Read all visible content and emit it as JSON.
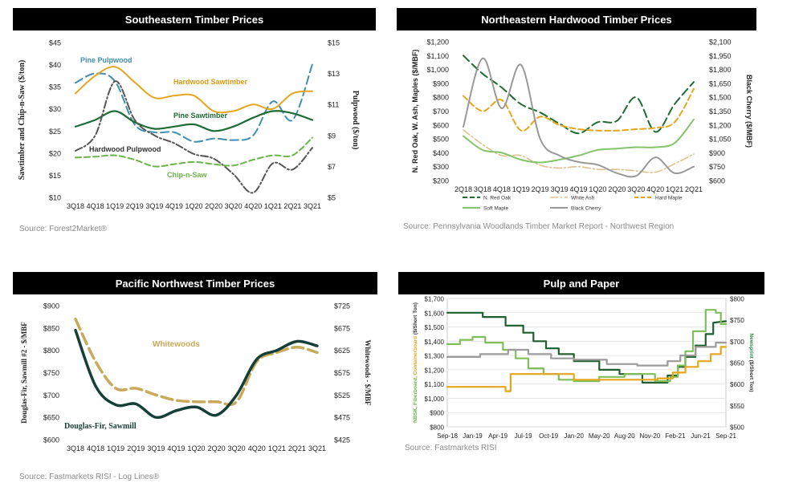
{
  "panels": [
    {
      "title": "Southeastern Timber Prices",
      "source": "Source: Forest2Market®",
      "chart_data": {
        "type": "line",
        "categories": [
          "3Q18",
          "4Q18",
          "1Q19",
          "2Q19",
          "3Q19",
          "4Q19",
          "1Q20",
          "2Q20",
          "3Q20",
          "4Q20",
          "1Q21",
          "2Q21",
          "3Q21"
        ],
        "ylabel": "Sawtimber and Chip-n-Saw ($/ton)",
        "y2label": "Pulpwood ($/ton)",
        "ylim": [
          10,
          45
        ],
        "yticks": [
          "$10",
          "$15",
          "$20",
          "$25",
          "$30",
          "$35",
          "$40",
          "$45"
        ],
        "y2lim": [
          5,
          15
        ],
        "y2ticks": [
          "$5",
          "$7",
          "$9",
          "$11",
          "$13",
          "$15"
        ],
        "series": [
          {
            "name": "Pine Pulpwood",
            "axis": "right",
            "color": "#3f8fb0",
            "dash": "10,5",
            "width": 2,
            "values": [
              12.4,
              13.0,
              12.5,
              9.7,
              9.2,
              9.2,
              8.6,
              8.8,
              8.7,
              9.0,
              11.2,
              10.0,
              13.6
            ]
          },
          {
            "name": "Hardwood Sawtimber",
            "axis": "left",
            "color": "#e5a51e",
            "dash": "",
            "width": 2,
            "values": [
              33.5,
              37.5,
              39.5,
              36.0,
              32.5,
              33.0,
              33.0,
              29.5,
              29.5,
              31.0,
              30.0,
              33.5,
              34.0
            ]
          },
          {
            "name": "Pine Sawtimber",
            "axis": "left",
            "color": "#1e6b35",
            "dash": "",
            "width": 2.2,
            "values": [
              26.0,
              27.5,
              29.5,
              27.0,
              25.5,
              26.0,
              26.5,
              25.0,
              26.0,
              28.0,
              29.5,
              29.0,
              27.5
            ]
          },
          {
            "name": "Hardwood Pulpwood",
            "axis": "right",
            "color": "#555555",
            "dash": "9,3,2,3",
            "width": 2,
            "values": [
              8.0,
              9.0,
              12.5,
              10.0,
              9.0,
              8.5,
              7.8,
              7.5,
              6.5,
              5.3,
              7.2,
              6.8,
              8.2
            ]
          },
          {
            "name": "Chip-n-Saw",
            "axis": "left",
            "color": "#6bb34a",
            "dash": "7,4",
            "width": 2,
            "values": [
              19.0,
              19.2,
              19.5,
              18.5,
              17.0,
              17.5,
              18.0,
              17.5,
              17.2,
              18.5,
              19.5,
              19.5,
              23.5
            ]
          }
        ],
        "annotations": [
          {
            "text": "Pine Pulpwood",
            "color": "#3f8fb0"
          },
          {
            "text": "Hardwood Sawtimber",
            "color": "#d79a14"
          },
          {
            "text": "Pine Sawtimber",
            "color": "#1e6b35"
          },
          {
            "text": "Hardwood Pulpwood",
            "color": "#333333"
          },
          {
            "text": "Chip-n-Saw",
            "color": "#6bb34a"
          }
        ]
      }
    },
    {
      "title": "Northeastern Hardwood Timber Prices",
      "source": "Source: Pennsylvania Woodlands Timber Market Report - Northwest Region",
      "chart_data": {
        "type": "line",
        "categories": [
          "2Q18",
          "3Q18",
          "4Q18",
          "1Q19",
          "2Q19",
          "3Q19",
          "4Q19",
          "1Q20",
          "2Q20",
          "3Q20",
          "4Q20",
          "1Q21",
          "2Q21"
        ],
        "ylabel": "N. Red Oak, W. Ash, Maples ($/MBF)",
        "y2label": "Black Cherry ($/MBF)",
        "ylim": [
          200,
          1200
        ],
        "yticks": [
          "$200",
          "$300",
          "$400",
          "$500",
          "$600",
          "$700",
          "$800",
          "$900",
          "$1,000",
          "$1,100",
          "$1,200"
        ],
        "y2lim": [
          600,
          2100
        ],
        "y2ticks": [
          "$600",
          "$750",
          "$900",
          "$1,050",
          "$1,200",
          "$1,350",
          "$1,500",
          "$1,650",
          "$1,800",
          "$1,950",
          "$2,100"
        ],
        "series": [
          {
            "name": "N. Red Oak",
            "axis": "left",
            "color": "#1e6b35",
            "dash": "10,5",
            "width": 2,
            "values": [
              1100,
              970,
              870,
              750,
              690,
              610,
              540,
              620,
              630,
              800,
              550,
              750,
              910
            ]
          },
          {
            "name": "White Ash",
            "axis": "left",
            "color": "#e0c08e",
            "dash": "10,3,2,3",
            "width": 1.6,
            "values": [
              565,
              460,
              380,
              380,
              310,
              290,
              300,
              280,
              280,
              270,
              260,
              320,
              390
            ]
          },
          {
            "name": "Hard Maple",
            "axis": "left",
            "color": "#e5a51e",
            "dash": "7,4",
            "width": 2,
            "values": [
              810,
              700,
              780,
              560,
              660,
              600,
              570,
              560,
              560,
              570,
              580,
              620,
              860
            ]
          },
          {
            "name": "Soft Maple",
            "axis": "left",
            "color": "#84c46a",
            "dash": "",
            "width": 2,
            "values": [
              520,
              420,
              400,
              350,
              330,
              350,
              380,
              420,
              430,
              440,
              440,
              470,
              640
            ]
          },
          {
            "name": "Black Cherry",
            "axis": "right",
            "color": "#999999",
            "dash": "",
            "width": 2,
            "values": [
              1180,
              1920,
              1380,
              1850,
              1050,
              870,
              800,
              770,
              680,
              650,
              850,
              680,
              750
            ]
          }
        ]
      }
    },
    {
      "title": "Pacific Northwest Timber Prices",
      "source": "Source: Fastmarkets RISI - Log Lines®",
      "chart_data": {
        "type": "line",
        "categories": [
          "3Q18",
          "4Q18",
          "1Q19",
          "2Q19",
          "3Q19",
          "4Q19",
          "1Q20",
          "2Q20",
          "3Q20",
          "4Q20",
          "1Q21",
          "2Q21",
          "3Q21"
        ],
        "ylabel": "Douglas-Fir, Sawmill #2 - $/MBF",
        "y2label": "Whitewoods - $/MBF",
        "ylim": [
          600,
          900
        ],
        "yticks": [
          "$600",
          "$650",
          "$700",
          "$750",
          "$800",
          "$850",
          "$900"
        ],
        "y2lim": [
          425,
          725
        ],
        "y2ticks": [
          "$425",
          "$475",
          "$525",
          "$575",
          "$625",
          "$675",
          "$725"
        ],
        "series": [
          {
            "name": "Whitewoods",
            "axis": "right",
            "color": "#c9a95a",
            "dash": "14,6",
            "width": 3.5,
            "values": [
              695,
              600,
              540,
              540,
              525,
              513,
              510,
              510,
              510,
              600,
              620,
              632,
              620
            ]
          },
          {
            "name": "Douglas-Fir, Sawmill",
            "axis": "left",
            "color": "#163f37",
            "dash": "",
            "width": 3.5,
            "values": [
              845,
              720,
              678,
              680,
              650,
              665,
              673,
              655,
              700,
              780,
              800,
              820,
              810
            ]
          }
        ],
        "annotations": [
          {
            "text": "Whitewoods",
            "color": "#c9a95a"
          },
          {
            "text": "Douglas-Fir, Sawmill",
            "color": "#163f37"
          }
        ]
      }
    },
    {
      "title": "Pulp and Paper",
      "source": "Source: Fastmarkets RISI",
      "chart_data": {
        "type": "line",
        "categories": [
          "Sep-18",
          "Jan-19",
          "Apr-19",
          "Jul-19",
          "Oct-19",
          "Jan-20",
          "May-20",
          "Aug-20",
          "Nov-20",
          "Feb-21",
          "Jun-21",
          "Sep-21"
        ],
        "ylabel_parts": [
          {
            "text": "NBSK, Fiberboard, ",
            "color": "#6bb34a"
          },
          {
            "text": "Containerboard",
            "color": "#e5a51e"
          },
          {
            "text": " ($/Short Ton)",
            "color": "#333333"
          }
        ],
        "y2label_parts": [
          {
            "text": "Newsprint",
            "color": "#2d8a3e"
          },
          {
            "text": " ($/Short Ton)",
            "color": "#333333"
          }
        ],
        "ylim": [
          800,
          1700
        ],
        "yticks": [
          "$800",
          "$900",
          "$1,000",
          "$1,100",
          "$1,200",
          "$1,300",
          "$1,400",
          "$1,500",
          "$1,600",
          "$1,700"
        ],
        "y2lim": [
          500,
          800
        ],
        "y2ticks": [
          "$500",
          "$550",
          "$600",
          "$650",
          "$700",
          "$750",
          "$800"
        ],
        "series": [
          {
            "axis": "left",
            "color": "#1f5f2e",
            "width": 2.2,
            "x": [
              0,
              1.4,
              1.4,
              2.3,
              2.3,
              3.0,
              3.0,
              3.4,
              3.4,
              3.9,
              3.9,
              4.4,
              4.4,
              5.0,
              5.0,
              6.0,
              6.0,
              6.8,
              6.8,
              7.7,
              7.7,
              8.7,
              8.7,
              9.1,
              9.1,
              9.4,
              9.4,
              9.8,
              9.8,
              10.2,
              10.2,
              10.5,
              10.5,
              11.0
            ],
            "values": [
              1600,
              1600,
              1570,
              1570,
              1510,
              1510,
              1460,
              1460,
              1400,
              1400,
              1350,
              1350,
              1310,
              1310,
              1260,
              1260,
              1200,
              1200,
              1170,
              1170,
              1110,
              1110,
              1160,
              1160,
              1220,
              1220,
              1290,
              1290,
              1370,
              1370,
              1450,
              1450,
              1530,
              1540
            ]
          },
          {
            "axis": "left",
            "color": "#7fbf5a",
            "width": 2.2,
            "x": [
              0,
              0.5,
              0.5,
              1.0,
              1.0,
              1.5,
              1.5,
              2.2,
              2.2,
              2.7,
              2.7,
              3.2,
              3.2,
              3.8,
              3.8,
              4.4,
              4.4,
              5.0,
              5.0,
              6.0,
              6.0,
              7.0,
              7.0,
              8.2,
              8.2,
              8.8,
              8.8,
              9.1,
              9.1,
              9.4,
              9.4,
              9.7,
              9.7,
              10.2,
              10.2,
              10.6,
              10.6,
              10.8,
              10.8,
              11.0
            ],
            "values": [
              1380,
              1380,
              1410,
              1410,
              1430,
              1430,
              1390,
              1390,
              1340,
              1340,
              1280,
              1280,
              1210,
              1210,
              1170,
              1170,
              1130,
              1130,
              1120,
              1120,
              1150,
              1150,
              1170,
              1170,
              1120,
              1120,
              1150,
              1150,
              1230,
              1230,
              1330,
              1330,
              1470,
              1470,
              1620,
              1620,
              1600,
              1600,
              1520,
              1520
            ]
          },
          {
            "axis": "left",
            "color": "#9b9b9b",
            "width": 2.2,
            "x": [
              0,
              1.3,
              1.3,
              2.4,
              2.4,
              3.2,
              3.2,
              4.1,
              4.1,
              5.0,
              5.0,
              6.3,
              6.3,
              7.5,
              7.5,
              8.7,
              8.7,
              9.2,
              9.2,
              9.8,
              9.8,
              10.6,
              10.6,
              11.0
            ],
            "values": [
              1290,
              1290,
              1310,
              1310,
              1340,
              1340,
              1310,
              1310,
              1280,
              1280,
              1270,
              1270,
              1240,
              1240,
              1230,
              1230,
              1260,
              1260,
              1300,
              1300,
              1360,
              1360,
              1390,
              1390
            ]
          },
          {
            "axis": "left",
            "color": "#e5a51e",
            "width": 2.2,
            "x": [
              0,
              2.3,
              2.3,
              2.5,
              2.5,
              5.0,
              5.0,
              8.3,
              8.3,
              8.9,
              8.9,
              9.4,
              9.4,
              9.9,
              9.9,
              10.4,
              10.4,
              10.8,
              10.8,
              11.0
            ],
            "values": [
              1080,
              1080,
              1050,
              1050,
              1170,
              1170,
              1130,
              1130,
              1140,
              1140,
              1180,
              1180,
              1220,
              1220,
              1260,
              1260,
              1310,
              1310,
              1360,
              1360
            ]
          }
        ]
      }
    }
  ]
}
